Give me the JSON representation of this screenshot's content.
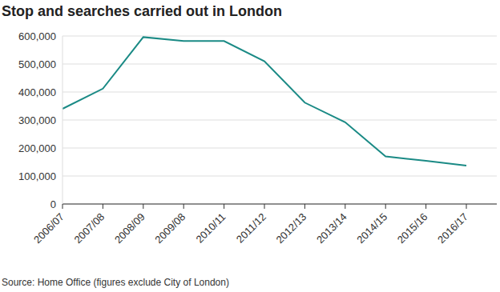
{
  "chart_data": {
    "type": "line",
    "title": "Stop and searches carried out in London",
    "source": "Source: Home Office (figures exclude City of London)",
    "categories": [
      "2006/07",
      "2007/08",
      "2008/09",
      "2009/08",
      "2010/11",
      "2011/12",
      "2012/13",
      "2013/14",
      "2014/15",
      "2015/16",
      "2016/17"
    ],
    "values": [
      340000,
      412000,
      596000,
      582000,
      582000,
      510000,
      362000,
      292000,
      170000,
      154000,
      137000
    ],
    "color": "#1a8a85",
    "ylim": [
      0,
      600000
    ],
    "yticks": [
      0,
      {
        "value": 100000,
        "label": "100,000"
      },
      {
        "value": 200000,
        "label": "200,000"
      },
      {
        "value": 300000,
        "label": "300,000"
      },
      {
        "value": 400000,
        "label": "400,000"
      },
      {
        "value": 500000,
        "label": "500,000"
      },
      {
        "value": 600000,
        "label": "600,000"
      }
    ],
    "grid": true
  }
}
